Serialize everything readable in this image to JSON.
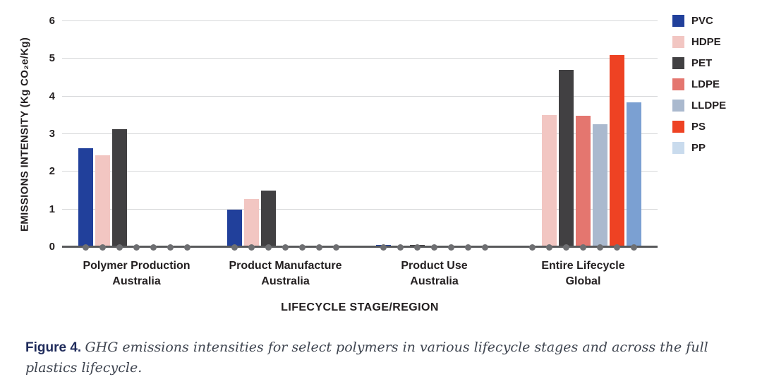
{
  "chart_data": {
    "type": "bar",
    "title": "",
    "ylabel": "EMISSIONS INTENSITY (Kg CO₂e/Kg)",
    "xlabel": "LIFECYCLE STAGE/REGION",
    "ylim": [
      0,
      6
    ],
    "yticks": [
      0,
      1,
      2,
      3,
      4,
      5,
      6
    ],
    "grid": true,
    "legend_position": "right",
    "categories": [
      "Polymer Production\nAustralia",
      "Product Manufacture\nAustralia",
      "Product Use\nAustralia",
      "Entire Lifecycle\nGlobal"
    ],
    "series": [
      {
        "name": "PVC",
        "color": "#21409b",
        "legend_color": "#21409b",
        "values": [
          2.63,
          1.0,
          0.05,
          0
        ]
      },
      {
        "name": "HDPE",
        "color": "#f2c6c2",
        "legend_color": "#f2c6c2",
        "values": [
          2.43,
          1.27,
          0.03,
          3.5
        ]
      },
      {
        "name": "PET",
        "color": "#414042",
        "legend_color": "#414042",
        "values": [
          3.13,
          1.5,
          0.06,
          4.7
        ]
      },
      {
        "name": "LDPE",
        "color": "#e4766f",
        "legend_color": "#e4766f",
        "values": [
          0,
          0,
          0,
          3.48
        ]
      },
      {
        "name": "LLDPE",
        "color": "#aab9ce",
        "legend_color": "#aab9ce",
        "values": [
          0,
          0,
          0,
          3.27
        ]
      },
      {
        "name": "PS",
        "color": "#ee4223",
        "legend_color": "#ee4223",
        "values": [
          0,
          0,
          0,
          5.1
        ]
      },
      {
        "name": "PP",
        "color": "#7ba0d2",
        "legend_color": "#c9dbed",
        "values": [
          0,
          0,
          0,
          3.85
        ]
      }
    ]
  },
  "caption": {
    "label": "Figure 4.",
    "text": "GHG emissions intensities for select polymers in various lifecycle stages and across the full plastics lifecycle."
  },
  "colors": {
    "gridline": "#d7d8da",
    "axis_line": "#58595b",
    "zero_dot": "#6e6f72",
    "label_text": "#231f20",
    "caption_label": "#1f2b5b",
    "caption_text": "#3f4550"
  }
}
